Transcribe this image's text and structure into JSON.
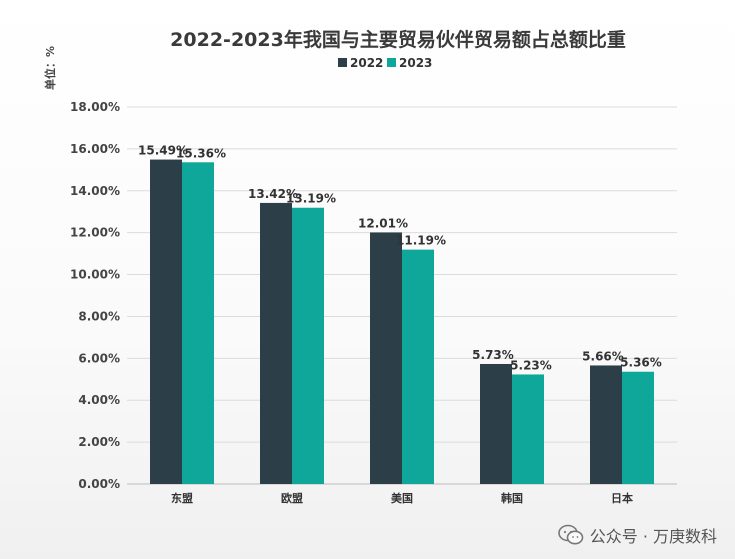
{
  "chart_data": {
    "type": "bar",
    "title": "2022-2023年我国与主要贸易伙伴贸易额占总额比重",
    "unit_label": "单位：%",
    "categories": [
      "东盟",
      "欧盟",
      "美国",
      "韩国",
      "日本"
    ],
    "series": [
      {
        "name": "2022",
        "color": "#2c3e47",
        "values": [
          15.49,
          13.42,
          12.01,
          5.73,
          5.66
        ],
        "labels": [
          "15.49%",
          "13.42%",
          "12.01%",
          "5.73%",
          "5.66%"
        ]
      },
      {
        "name": "2023",
        "color": "#0ea79a",
        "values": [
          15.36,
          13.19,
          11.19,
          5.23,
          5.36
        ],
        "labels": [
          "15.36%",
          "13.19%",
          "11.19%",
          "5.23%",
          "5.36%"
        ]
      }
    ],
    "ylim": [
      0,
      18
    ],
    "yticks": [
      0,
      2,
      4,
      6,
      8,
      10,
      12,
      14,
      16,
      18
    ],
    "ytick_labels": [
      "0.00%",
      "2.00%",
      "4.00%",
      "6.00%",
      "8.00%",
      "10.00%",
      "12.00%",
      "14.00%",
      "16.00%",
      "18.00%"
    ],
    "legend_position": "top-center",
    "grid": true
  },
  "watermark": {
    "text": "公众号 · 万庚数科",
    "icon": "wechat-icon"
  }
}
